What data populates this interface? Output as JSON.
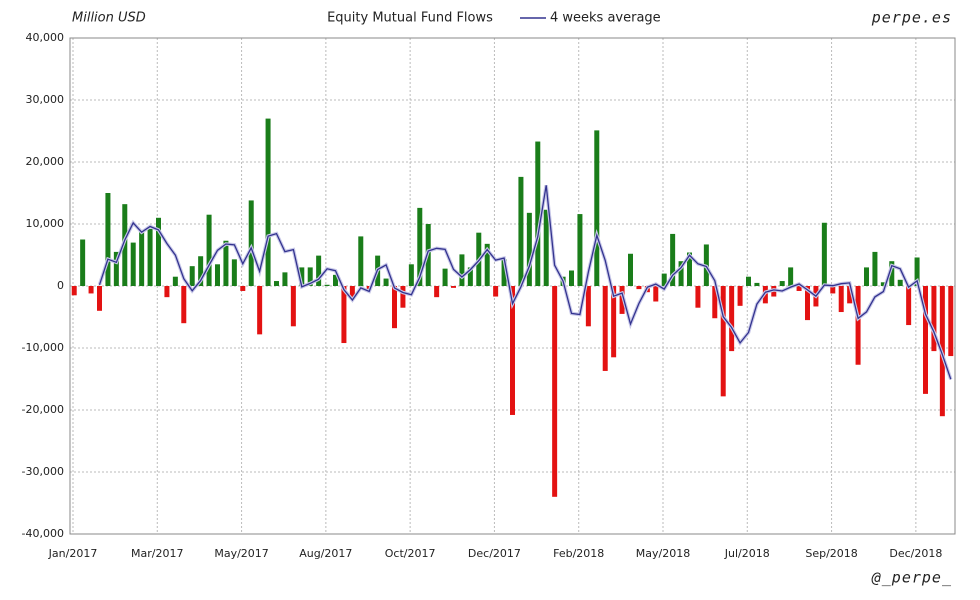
{
  "chart_data": {
    "type": "bar",
    "title": "Equity Mutual Fund Flows",
    "y_label": "Million USD",
    "source": "perpe.es",
    "author": "@_perpe_",
    "categories": [
      "Jan/2017",
      null,
      null,
      null,
      null,
      null,
      null,
      null,
      null,
      null,
      "Mar/2017",
      null,
      null,
      null,
      null,
      null,
      null,
      null,
      null,
      null,
      "May/2017",
      null,
      null,
      null,
      null,
      null,
      null,
      null,
      null,
      null,
      "Aug/2017",
      null,
      null,
      null,
      null,
      null,
      null,
      null,
      null,
      null,
      "Oct/2017",
      null,
      null,
      null,
      null,
      null,
      null,
      null,
      null,
      null,
      "Dec/2017",
      null,
      null,
      null,
      null,
      null,
      null,
      null,
      null,
      null,
      "Feb/2018",
      null,
      null,
      null,
      null,
      null,
      null,
      null,
      null,
      null,
      "May/2018",
      null,
      null,
      null,
      null,
      null,
      null,
      null,
      null,
      null,
      "Jul/2018",
      null,
      null,
      null,
      null,
      null,
      null,
      null,
      null,
      null,
      "Sep/2018",
      null,
      null,
      null,
      null,
      null,
      null,
      null,
      null,
      null,
      "Dec/2018",
      null,
      null,
      null,
      null
    ],
    "values": [
      -1500,
      7500,
      -1200,
      -4000,
      15000,
      5500,
      13200,
      7000,
      9000,
      9200,
      11000,
      -1800,
      1500,
      -6000,
      3200,
      4800,
      11500,
      3500,
      7300,
      4300,
      -800,
      13800,
      -7800,
      27000,
      800,
      2200,
      -6500,
      3000,
      3000,
      4900,
      200,
      1800,
      -9200,
      -1800,
      8000,
      -500,
      4900,
      1200,
      -6800,
      -3500,
      3500,
      12600,
      10000,
      -1800,
      2800,
      -300,
      5100,
      3000,
      8600,
      6800,
      -1700,
      4300,
      -20800,
      17600,
      11800,
      23300,
      12300,
      -34000,
      1500,
      2500,
      11600,
      -6500,
      25100,
      -13700,
      -11500,
      -4500,
      5200,
      -500,
      -1000,
      -2500,
      2000,
      8400,
      4000,
      5400,
      -3500,
      6700,
      -5200,
      -17800,
      -10500,
      -3200,
      1500,
      500,
      -2800,
      -1700,
      800,
      3000,
      -800,
      -5500,
      -3300,
      10200,
      -1200,
      -4200,
      -2800,
      -12700,
      3000,
      5500,
      600,
      4000,
      1000,
      -6300,
      4600,
      -17400,
      -10500,
      -21000,
      -11300
    ],
    "positive_color": "#1a7d1a",
    "negative_color": "#e31212",
    "line": {
      "name": "4 weeks average",
      "color": "#33338f",
      "values": [
        null,
        null,
        null,
        200,
        4325,
        3825,
        7425,
        10175,
        8675,
        9600,
        9050,
        6850,
        4975,
        1175,
        -775,
        875,
        3375,
        5750,
        6775,
        6650,
        3575,
        6150,
        2375,
        8050,
        8450,
        5550,
        5875,
        -125,
        425,
        1100,
        2775,
        2475,
        -575,
        -2250,
        -300,
        -875,
        2650,
        3400,
        -300,
        -1050,
        -1400,
        1450,
        5650,
        6075,
        5900,
        2675,
        1450,
        2650,
        4100,
        5875,
        4175,
        4500,
        -2850,
        -150,
        3225,
        7975,
        16250,
        3350,
        775,
        -4425,
        -4600,
        2275,
        8175,
        4125,
        -1650,
        -1150,
        -6125,
        -2825,
        -200,
        300,
        -500,
        1725,
        2975,
        4950,
        3575,
        3150,
        850,
        -4950,
        -6700,
        -9175,
        -7500,
        -2925,
        -1000,
        -625,
        -800,
        -175,
        325,
        -625,
        -1650,
        150,
        50,
        375,
        500,
        -5225,
        -4175,
        -1750,
        -900,
        3275,
        2775,
        -175,
        825,
        -4525,
        -7400,
        -11075,
        -15050
      ]
    },
    "ylim": [
      -40000,
      40000
    ],
    "yticks": [
      {
        "value": -40000,
        "label": "-40,000"
      },
      {
        "value": -30000,
        "label": "-30,000"
      },
      {
        "value": -20000,
        "label": "-20,000"
      },
      {
        "value": -10000,
        "label": "-10,000"
      },
      0,
      {
        "value": 10000,
        "label": "10,000"
      },
      {
        "value": 20000,
        "label": "20,000"
      },
      {
        "value": 30000,
        "label": "30,000"
      },
      {
        "value": 40000,
        "label": "40,000"
      }
    ],
    "grid": true
  }
}
